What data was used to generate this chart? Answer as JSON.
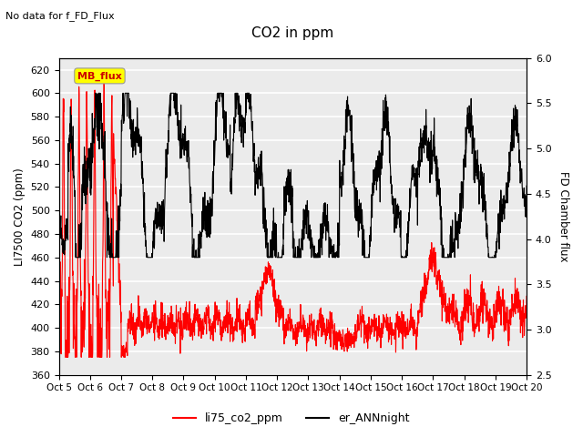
{
  "title": "CO2 in ppm",
  "top_note": "No data for f_FD_Flux",
  "ylabel_left": "LI7500 CO2 (ppm)",
  "ylabel_right": "FD Chamber flux",
  "ylim_left": [
    360,
    630
  ],
  "ylim_right": [
    2.5,
    6.0
  ],
  "yticks_left": [
    360,
    380,
    400,
    420,
    440,
    460,
    480,
    500,
    520,
    540,
    560,
    580,
    600,
    620
  ],
  "yticks_right": [
    2.5,
    3.0,
    3.5,
    4.0,
    4.5,
    5.0,
    5.5,
    6.0
  ],
  "xtick_labels": [
    "Oct 5",
    "Oct 6",
    "Oct 7",
    "Oct 8",
    "Oct 9",
    "Oct 10",
    "Oct 11",
    "Oct 12",
    "Oct 13",
    "Oct 14",
    "Oct 15",
    "Oct 16",
    "Oct 17",
    "Oct 18",
    "Oct 19",
    "Oct 20"
  ],
  "legend_labels": [
    "li75_co2_ppm",
    "er_ANNnight"
  ],
  "legend_colors": [
    "#ff0000",
    "#000000"
  ],
  "line_lw_red": 0.8,
  "line_lw_black": 0.8,
  "mb_flux_box_color": "#ffff00",
  "mb_flux_text_color": "#cc0000",
  "background_color": "#ebebeb",
  "grid_color": "#ffffff",
  "n_points": 2000
}
